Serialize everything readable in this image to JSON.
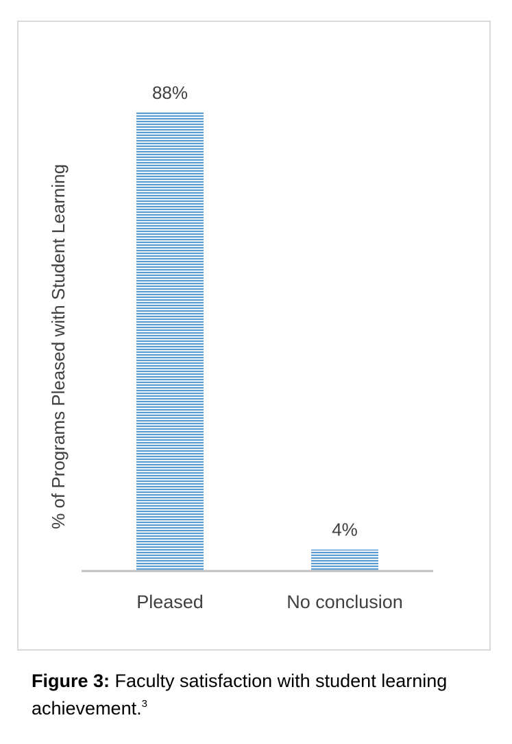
{
  "chart_data": {
    "type": "bar",
    "categories": [
      "Pleased",
      "No conclusion"
    ],
    "values": [
      88,
      4
    ],
    "value_labels": [
      "88%",
      "4%"
    ],
    "ylabel": "% of Programs Pleased with Student Learning",
    "ylim": [
      0,
      100
    ],
    "grid": false,
    "legend": "none",
    "bar_color": "#5b9bd5",
    "bar_pattern": "horizontal-lines"
  },
  "caption": {
    "label": "Figure 3:",
    "text": " Faculty satisfaction with student learning achievement.",
    "superscript": "3"
  }
}
